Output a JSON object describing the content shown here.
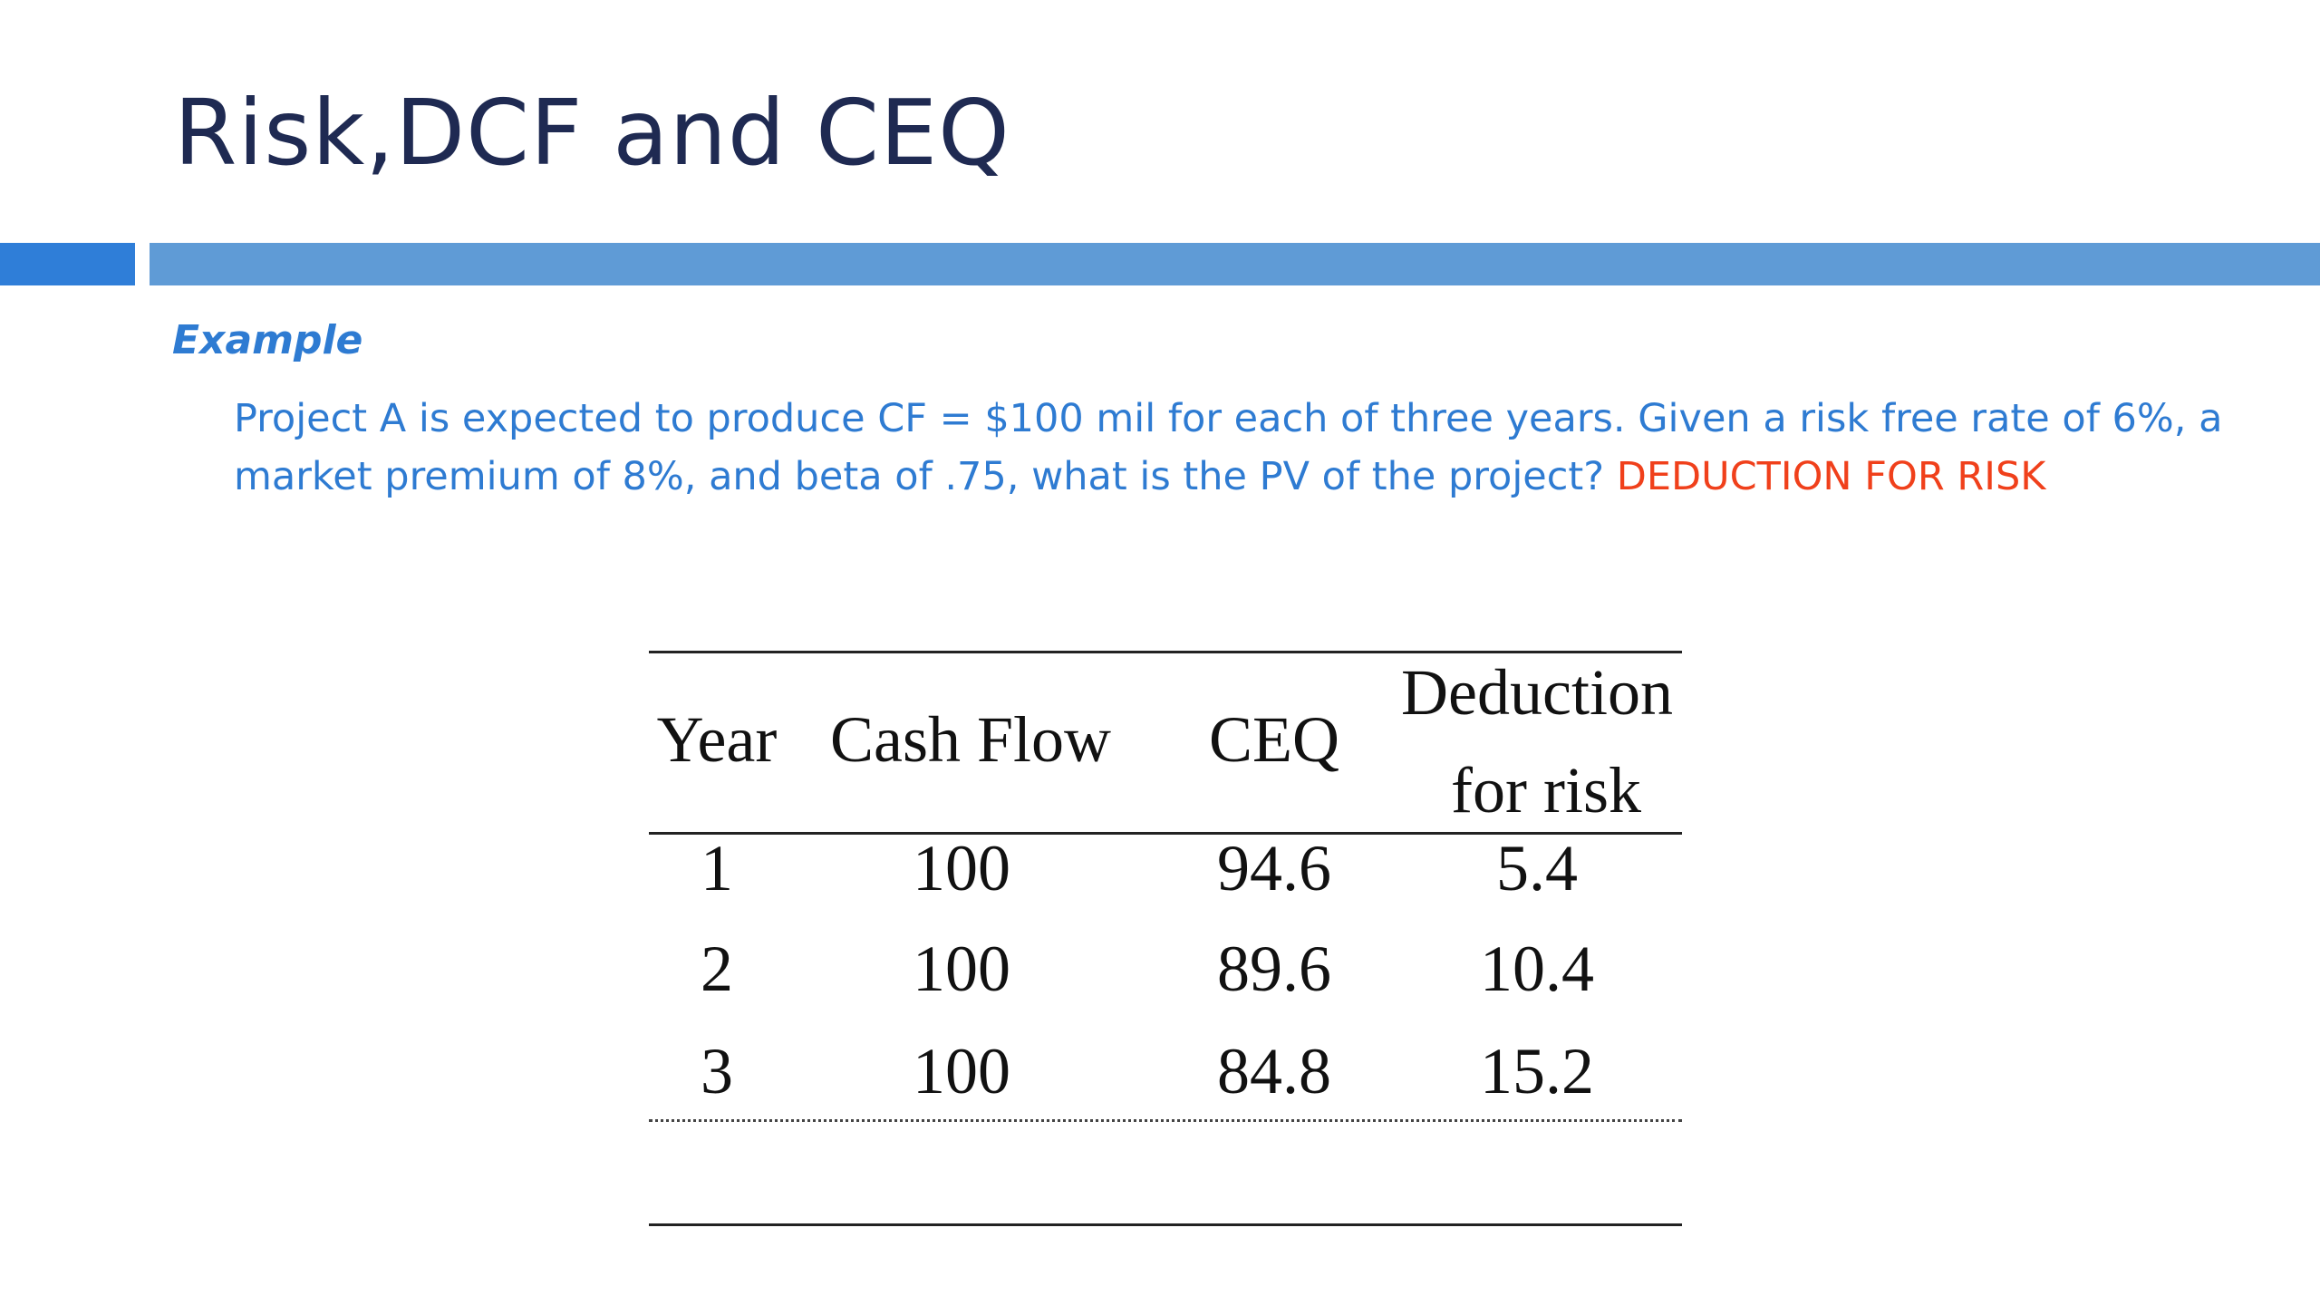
{
  "slide": {
    "title": "Risk,DCF and CEQ",
    "example_label": "Example",
    "paragraph_text": "Project A is expected to produce CF = $100 mil for each of three years. Given a risk free rate of 6%, a market premium of 8%, and beta of .75, what is the PV of the project? ",
    "paragraph_highlight": "DEDUCTION FOR RISK",
    "colors": {
      "title": "#1f2a52",
      "accent_bar_left": "#2f7ed8",
      "accent_bar_right": "#5f9bd6",
      "body_text": "#2e7bd2",
      "highlight": "#f0401b"
    }
  },
  "table": {
    "headers": {
      "year": "Year",
      "cash_flow": "Cash Flow",
      "ceq": "CEQ",
      "deduction_line1": "Deduction",
      "deduction_line2": "for risk"
    },
    "rows": [
      {
        "year": "1",
        "cash_flow": "100",
        "ceq": "94.6",
        "deduction": "5.4"
      },
      {
        "year": "2",
        "cash_flow": "100",
        "ceq": "89.6",
        "deduction": "10.4"
      },
      {
        "year": "3",
        "cash_flow": "100",
        "ceq": "84.8",
        "deduction": "15.2"
      }
    ]
  }
}
